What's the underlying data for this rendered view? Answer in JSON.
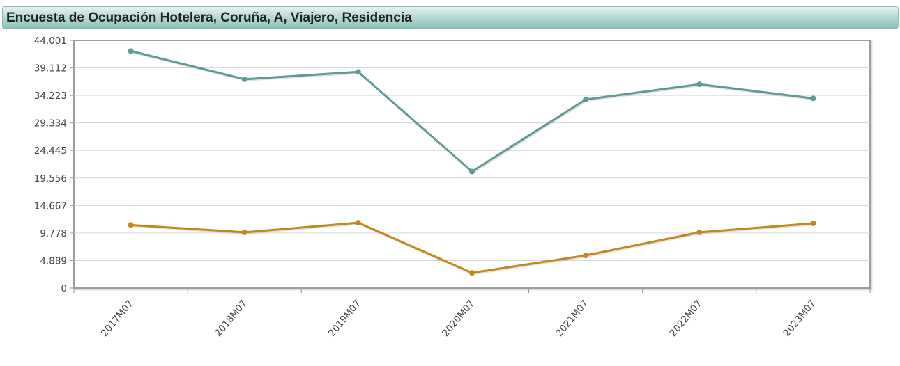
{
  "header": {
    "title": "Encuesta de Ocupación Hotelera, Coruña, A, Viajero, Residencia"
  },
  "colors": {
    "series_1": "#5b9b98",
    "series_2": "#c5861a",
    "grid": "#d6d6d6",
    "axis": "#999999"
  },
  "chart_data": {
    "type": "line",
    "title": "Encuesta de Ocupación Hotelera, Coruña, A, Viajero, Residencia",
    "xlabel": "",
    "ylabel": "",
    "categories": [
      "2017M07",
      "2018M07",
      "2019M07",
      "2020M07",
      "2021M07",
      "2022M07",
      "2023M07"
    ],
    "y_ticks": [
      "0",
      "4.889",
      "9.778",
      "14.667",
      "19.556",
      "24.445",
      "29.334",
      "34.223",
      "39.112",
      "44.001"
    ],
    "ylim": [
      0,
      44001
    ],
    "grid": true,
    "legend": "none",
    "series": [
      {
        "values": [
          42100,
          37100,
          38400,
          20700,
          33500,
          36200,
          33700
        ]
      },
      {
        "values": [
          11200,
          9900,
          11600,
          2700,
          5800,
          9900,
          11500
        ]
      }
    ]
  }
}
